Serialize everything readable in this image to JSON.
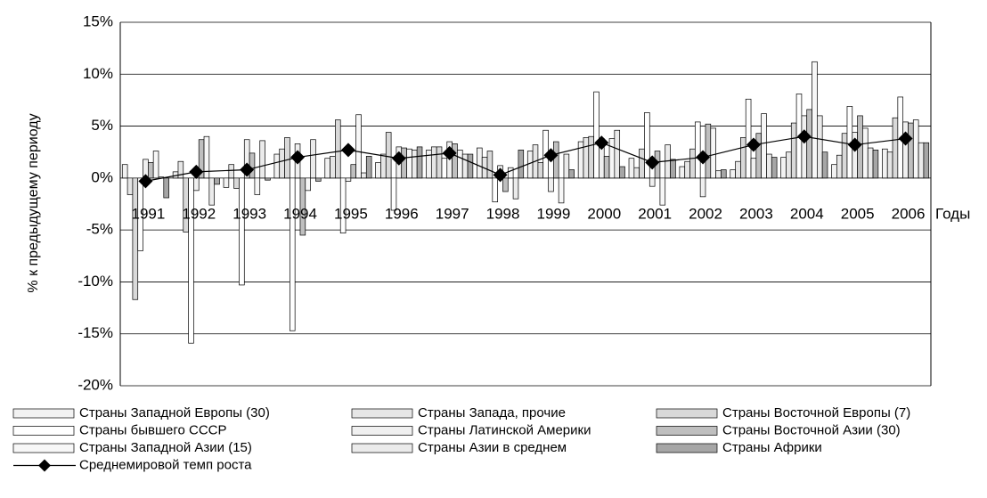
{
  "chart_data": {
    "type": "bar",
    "ylabel": "% к предыдущему периоду",
    "xlabel": "Годы",
    "categories": [
      "1991",
      "1992",
      "1993",
      "1994",
      "1995",
      "1996",
      "1997",
      "1998",
      "1999",
      "2000",
      "2001",
      "2002",
      "2003",
      "2004",
      "2005",
      "2006"
    ],
    "ylim": [
      -20,
      15
    ],
    "yticks": [
      {
        "value": -20,
        "label": "-20%"
      },
      {
        "value": -15,
        "label": "-15%"
      },
      {
        "value": -10,
        "label": "-10%"
      },
      {
        "value": -5,
        "label": "-5%"
      },
      {
        "value": 0,
        "label": "0%"
      },
      {
        "value": 5,
        "label": "5%"
      },
      {
        "value": 10,
        "label": "10%"
      },
      {
        "value": 15,
        "label": "15%"
      }
    ],
    "grid": true,
    "legend": "bottom",
    "series": [
      {
        "name": "Страны Западной Европы (30)",
        "color": "#f2f2f2",
        "values": [
          1.3,
          0.6,
          -0.9,
          2.3,
          1.9,
          1.5,
          2.7,
          2.9,
          2.6,
          3.5,
          1.9,
          1.1,
          0.8,
          2.0,
          1.3,
          2.8
        ]
      },
      {
        "name": "Страны Запада, прочие",
        "color": "#e6e6e6",
        "values": [
          -1.6,
          1.6,
          1.3,
          2.8,
          2.1,
          2.3,
          3.0,
          2.0,
          3.2,
          3.9,
          1.0,
          1.6,
          1.6,
          2.5,
          2.2,
          2.5
        ]
      },
      {
        "name": "Страны Восточной Европы (7)",
        "color": "#d9d9d9",
        "values": [
          -11.7,
          -5.2,
          -1.0,
          3.9,
          5.6,
          4.4,
          3.0,
          2.6,
          1.5,
          4.0,
          2.8,
          2.8,
          3.9,
          5.3,
          4.3,
          5.8
        ]
      },
      {
        "name": "Страны бывшего СССР",
        "color": "#ffffff",
        "values": [
          -7.0,
          -15.9,
          -10.3,
          -14.7,
          -5.3,
          -3.1,
          1.9,
          -2.3,
          4.6,
          8.3,
          6.3,
          5.4,
          7.6,
          8.1,
          6.9,
          7.8
        ]
      },
      {
        "name": "Страны Латинской Америки",
        "color": "#f0f0f0",
        "values": [
          1.8,
          -1.2,
          3.7,
          3.3,
          -0.3,
          3.0,
          3.5,
          1.2,
          -1.3,
          3.8,
          -0.8,
          -1.8,
          1.9,
          6.0,
          4.4,
          5.4
        ]
      },
      {
        "name": "Страны Восточной Азии (30)",
        "color": "#bfbfbf",
        "values": [
          1.5,
          3.7,
          2.4,
          -5.5,
          1.3,
          2.9,
          3.3,
          -1.3,
          3.5,
          2.1,
          2.6,
          5.2,
          4.3,
          6.6,
          6.0,
          5.3
        ]
      },
      {
        "name": "Страны Западной Азии (15)",
        "color": "#f7f7f7",
        "values": [
          2.6,
          4.0,
          -1.6,
          -1.2,
          6.1,
          2.8,
          2.7,
          1.0,
          -2.4,
          3.8,
          -2.6,
          4.8,
          6.2,
          11.2,
          4.8,
          5.6
        ]
      },
      {
        "name": "Страны Азии в среднем",
        "color": "#ebebeb",
        "values": [
          0.1,
          -2.6,
          3.6,
          3.7,
          0.5,
          2.7,
          2.3,
          -2.0,
          2.3,
          4.6,
          3.2,
          0.7,
          2.3,
          6.0,
          2.9,
          3.4
        ]
      },
      {
        "name": "Страны Африки",
        "color": "#a6a6a6",
        "values": [
          -1.9,
          -0.6,
          -0.2,
          -0.3,
          2.1,
          3.0,
          2.3,
          2.7,
          0.8,
          1.1,
          1.8,
          0.8,
          2.0,
          2.5,
          2.7,
          3.4
        ]
      },
      {
        "name": "Среднемировой темп роста",
        "type": "line",
        "color": "#000000",
        "values": [
          -0.3,
          0.6,
          0.8,
          2.0,
          2.7,
          1.9,
          2.4,
          0.3,
          2.2,
          3.4,
          1.5,
          2.0,
          3.2,
          4.0,
          3.2,
          3.8
        ]
      }
    ]
  }
}
